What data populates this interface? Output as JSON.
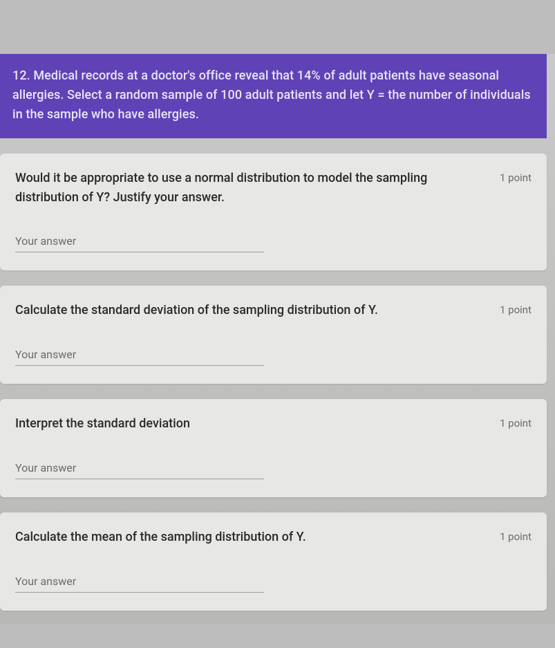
{
  "header": {
    "text": "12.  Medical records at a doctor's office reveal that 14% of adult patients have seasonal allergies.  Select a random sample of 100 adult patients and let Y = the number of individuals in the sample who have allergies.",
    "background_color": "#5f42b5",
    "text_color": "#eae3fb",
    "fontsize": 18
  },
  "points_label": "1 point",
  "answer_placeholder": "Your answer",
  "card_background": "#e7e7e5",
  "page_background": "#bdbdbd",
  "questions": [
    {
      "prompt": "Would it be appropriate to use a normal distribution to model the sampling distribution of Y?  Justify your answer."
    },
    {
      "prompt": "Calculate the standard deviation of the sampling distribution of Y."
    },
    {
      "prompt": "Interpret the standard deviation"
    },
    {
      "prompt": "Calculate the mean of the sampling distribution of Y."
    }
  ]
}
